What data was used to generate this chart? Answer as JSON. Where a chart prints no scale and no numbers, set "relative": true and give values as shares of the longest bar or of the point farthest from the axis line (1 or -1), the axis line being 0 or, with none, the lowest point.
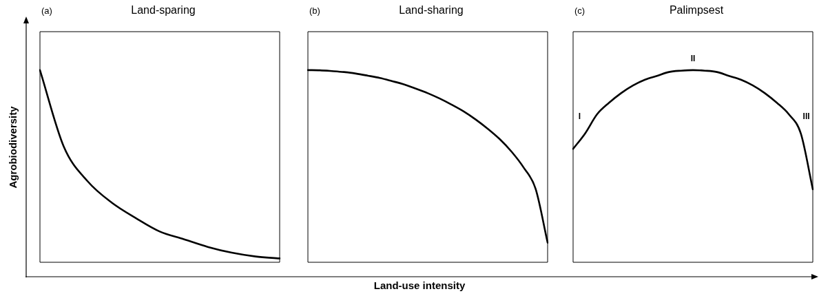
{
  "chart_data": [
    {
      "type": "line",
      "title": "Land-sparing",
      "subtitle": "(a)",
      "ylabel": "Agrobiodiversity",
      "relative": true,
      "legend": false,
      "grid": false,
      "tick_labels": false,
      "marker": "none",
      "line_style": "solid",
      "categories": [
        null,
        null,
        null,
        null,
        null,
        null,
        null,
        null,
        null,
        null,
        null
      ],
      "series": [
        {
          "color": "#000000",
          "values": [
            1,
            0.6,
            0.42,
            0.31,
            0.23,
            0.16,
            0.12,
            0.08,
            0.05,
            0.03,
            0.02
          ]
        }
      ]
    },
    {
      "type": "line",
      "title": "Land-sharing",
      "subtitle": "(b)",
      "xlabel": "Land-use intensity",
      "relative": true,
      "legend": false,
      "grid": false,
      "tick_labels": false,
      "marker": "none",
      "line_style": "solid",
      "categories": [
        null,
        null,
        null,
        null,
        null,
        null,
        null,
        null,
        null,
        null,
        null,
        null,
        null,
        null,
        null,
        null,
        null,
        null,
        null,
        null,
        null
      ],
      "series": [
        {
          "color": "#000000",
          "values": [
            1,
            0.999,
            0.995,
            0.99,
            0.982,
            0.971,
            0.959,
            0.943,
            0.926,
            0.904,
            0.88,
            0.852,
            0.82,
            0.785,
            0.743,
            0.695,
            0.641,
            0.575,
            0.493,
            0.382,
            0.102
          ]
        }
      ]
    },
    {
      "type": "line",
      "title": "Palimpsest",
      "subtitle": "(c)",
      "annotations": [
        "I",
        "II",
        "III"
      ],
      "relative": true,
      "legend": false,
      "grid": false,
      "tick_labels": false,
      "marker": "none",
      "line_style": "solid",
      "categories": [
        null,
        null,
        null,
        null,
        null,
        null,
        null,
        null,
        null,
        null,
        null,
        null,
        null,
        null,
        null,
        null,
        null,
        null,
        null,
        null,
        null
      ],
      "series": [
        {
          "color": "#000000",
          "values": [
            0.59,
            0.67,
            0.77,
            0.83,
            0.88,
            0.92,
            0.95,
            0.97,
            0.99,
            0.997,
            1,
            0.997,
            0.99,
            0.97,
            0.95,
            0.92,
            0.88,
            0.83,
            0.77,
            0.67,
            0.38
          ]
        }
      ]
    }
  ]
}
